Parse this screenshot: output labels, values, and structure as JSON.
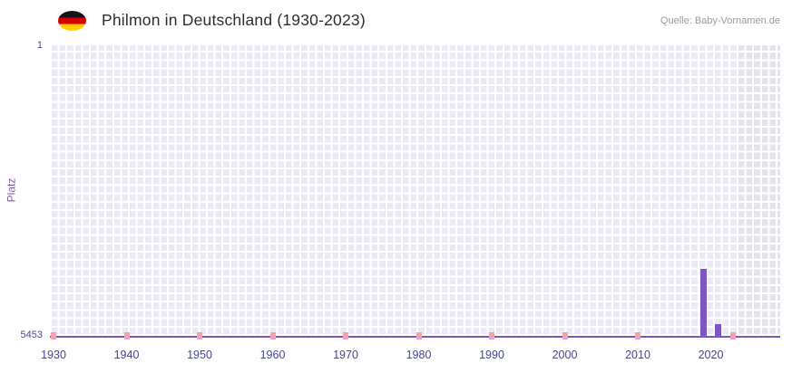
{
  "header": {
    "title": "Philmon in Deutschland (1930-2023)",
    "source": "Quelle: Baby-Vornamen.de",
    "flag_icon": "germany-flag-icon"
  },
  "chart_data": {
    "type": "bar",
    "title": "Philmon in Deutschland (1930-2023)",
    "source": "Quelle: Baby-Vornamen.de",
    "xlabel": "",
    "ylabel": "Platz",
    "grid": true,
    "legend": "none",
    "y_axis": {
      "min": 1,
      "max": 5453,
      "inverted": true,
      "tick_labels": [
        "1",
        "5453"
      ]
    },
    "x_axis": {
      "min": 1930,
      "max": 2023,
      "ticks": [
        1930,
        1940,
        1950,
        1960,
        1970,
        1980,
        1990,
        2000,
        2010,
        2020
      ]
    },
    "bars": [
      {
        "year": 2019,
        "rank": 4200
      },
      {
        "year": 2021,
        "rank": 5230
      }
    ],
    "low_rank_marker_years": [
      1930,
      1940,
      1950,
      1960,
      1970,
      1980,
      1990,
      2000,
      2010,
      2023
    ],
    "no_data_region_start": 2024,
    "colors": {
      "bar": "#7e57c2",
      "low_rank_marker": "#f0a3b4",
      "plot_background": "#ece9f6",
      "no_data_background": "#e4e4eb",
      "axis_line": "#7b57c2",
      "tick_label": "#44449a",
      "y_title": "#7e5cab"
    }
  }
}
